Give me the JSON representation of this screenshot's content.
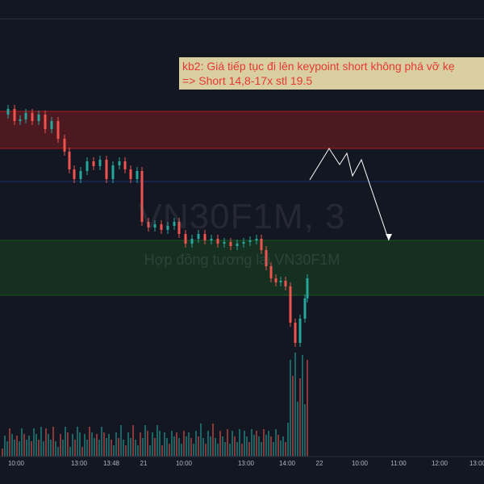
{
  "chart_data": {
    "type": "candlestick",
    "watermark": {
      "symbol": "VN30F1M, 3",
      "description": "Hợp đồng tương lai VN30F1M"
    },
    "annotation": {
      "line1": "kb2: Giá tiếp tục đi lên keypoint short không phá vỡ kẹ",
      "line2": "=> Short 14,8-17x stl 19.5"
    },
    "x_tick_labels": [
      "10:00",
      "13:00",
      "13:48",
      "21",
      "10:00",
      "13:00",
      "14:00",
      "22",
      "10:00",
      "11:00",
      "12:00",
      "13:00"
    ],
    "zones": [
      {
        "name": "supply-zone",
        "color": "#b71c1c"
      },
      {
        "name": "demand-zone",
        "color": "#1b5e20"
      }
    ],
    "colors": {
      "up": "#26a69a",
      "down": "#ef5350",
      "background": "#131722"
    }
  }
}
